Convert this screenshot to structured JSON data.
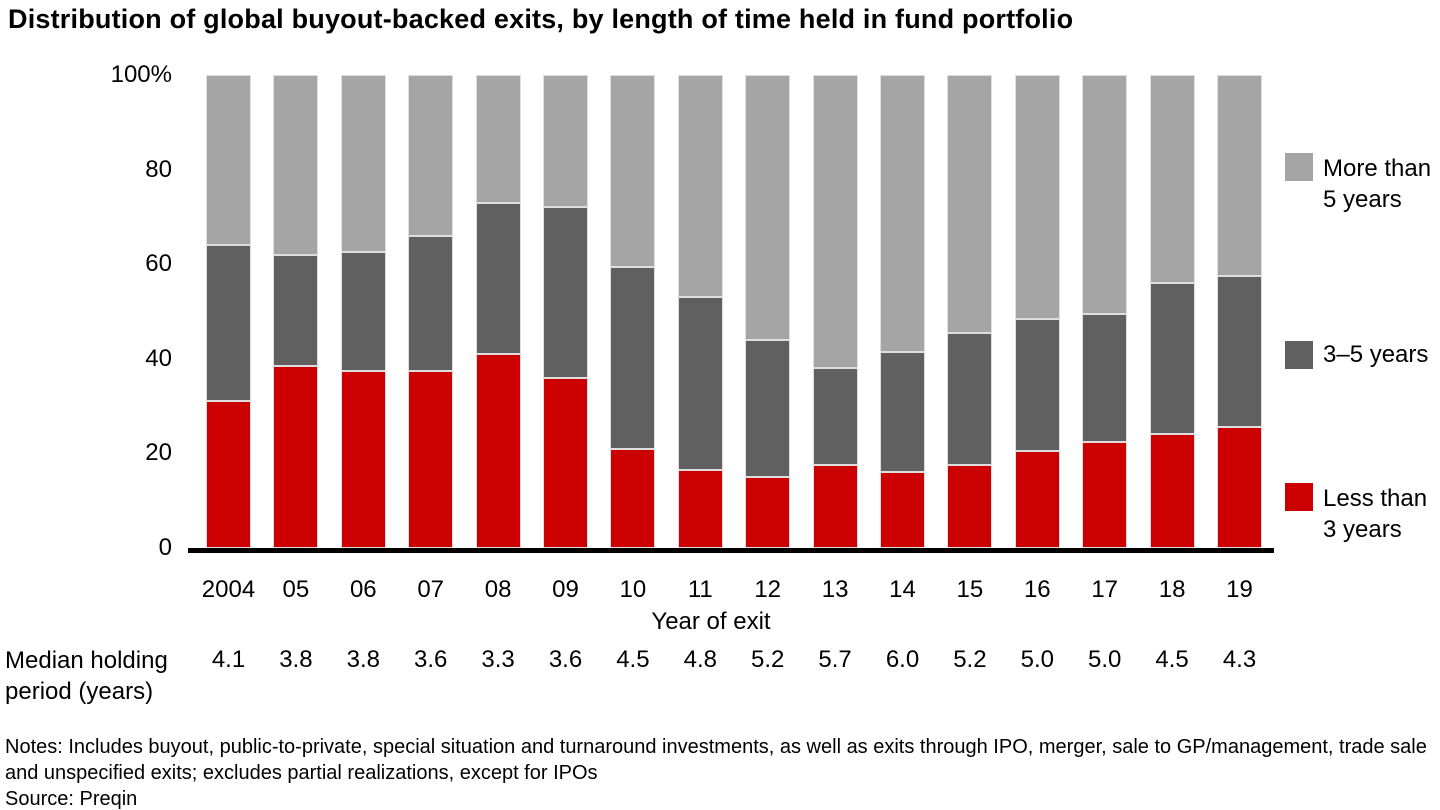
{
  "title": "Distribution of global buyout-backed exits, by length of time held in fund portfolio",
  "chart_data": {
    "type": "bar",
    "subtype": "stacked-100-percent",
    "title": "Distribution of global buyout-backed exits, by length of time held in fund portfolio",
    "categories": [
      "2004",
      "05",
      "06",
      "07",
      "08",
      "09",
      "10",
      "11",
      "12",
      "13",
      "14",
      "15",
      "16",
      "17",
      "18",
      "19"
    ],
    "series": [
      {
        "name": "Less than 3 years",
        "key": "less-than-3-years",
        "color": "#cc0000",
        "values": [
          31,
          38.5,
          37.5,
          37.5,
          41,
          36,
          21,
          16.5,
          15,
          17.5,
          16,
          17.5,
          20.5,
          22.5,
          24,
          25.5
        ]
      },
      {
        "name": "3–5 years",
        "key": "3-5-years",
        "color": "#606060",
        "values": [
          33,
          23.5,
          25,
          28.5,
          32,
          36,
          38.5,
          36.5,
          29,
          20.5,
          25.5,
          28,
          28,
          27,
          32,
          32
        ]
      },
      {
        "name": "More than 5 years",
        "key": "more-than-5-years",
        "color": "#a5a5a5",
        "values": [
          36,
          38,
          37.5,
          34,
          27,
          28,
          40.5,
          47,
          56,
          62,
          58.5,
          54.5,
          51.5,
          50.5,
          44,
          42.5
        ]
      }
    ],
    "xlabel": "Year of exit",
    "ylabel": "",
    "ylim": [
      0,
      100
    ],
    "yticks": [
      "100%",
      "80",
      "60",
      "40",
      "20",
      "0"
    ],
    "grid": false,
    "legend_position": "right",
    "legend": [
      {
        "key": "more-than-5-years",
        "color": "#a5a5a5",
        "lines": [
          "More than",
          "5 years"
        ]
      },
      {
        "key": "3-5-years",
        "color": "#606060",
        "lines": [
          "3–5 years"
        ]
      },
      {
        "key": "less-than-3-years",
        "color": "#cc0000",
        "lines": [
          "Less than",
          "3 years"
        ]
      }
    ],
    "median_row": {
      "label": "Median holding period (years)",
      "values": [
        "4.1",
        "3.8",
        "3.8",
        "3.6",
        "3.3",
        "3.6",
        "4.5",
        "4.8",
        "5.2",
        "5.7",
        "6.0",
        "5.2",
        "5.0",
        "5.0",
        "4.5",
        "4.3"
      ]
    }
  },
  "notes": {
    "line1": "Notes: Includes buyout, public-to-private, special situation and turnaround investments, as well as exits through IPO, merger, sale to GP/management, trade sale",
    "line2": "and unspecified exits; excludes partial realizations, except for IPOs",
    "source": "Source: Preqin"
  }
}
